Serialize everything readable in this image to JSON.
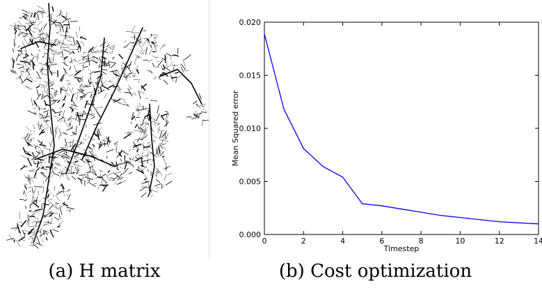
{
  "panels": {
    "left": {
      "caption": "(a) H matrix"
    },
    "right": {
      "caption": "(b) Cost optimization"
    }
  },
  "chart_data": {
    "type": "line",
    "title": "",
    "xlabel": "Timestep",
    "ylabel": "Mean Squared error",
    "xlim": [
      0,
      14
    ],
    "ylim": [
      0.0,
      0.02
    ],
    "x_ticks": [
      "0",
      "2",
      "4",
      "6",
      "8",
      "10",
      "12",
      "14"
    ],
    "y_ticks": [
      "0.000",
      "0.005",
      "0.010",
      "0.015",
      "0.020"
    ],
    "grid": false,
    "line_color": "#0000ff",
    "series": [
      {
        "x": [
          0,
          1,
          2,
          3,
          4,
          5,
          6,
          7,
          8,
          9,
          10,
          11,
          12,
          13,
          14
        ],
        "values": [
          0.0189,
          0.0118,
          0.0081,
          0.0064,
          0.0054,
          0.0029,
          0.0027,
          0.0024,
          0.0021,
          0.0018,
          0.0016,
          0.0014,
          0.0012,
          0.0011,
          0.001
        ]
      }
    ]
  }
}
